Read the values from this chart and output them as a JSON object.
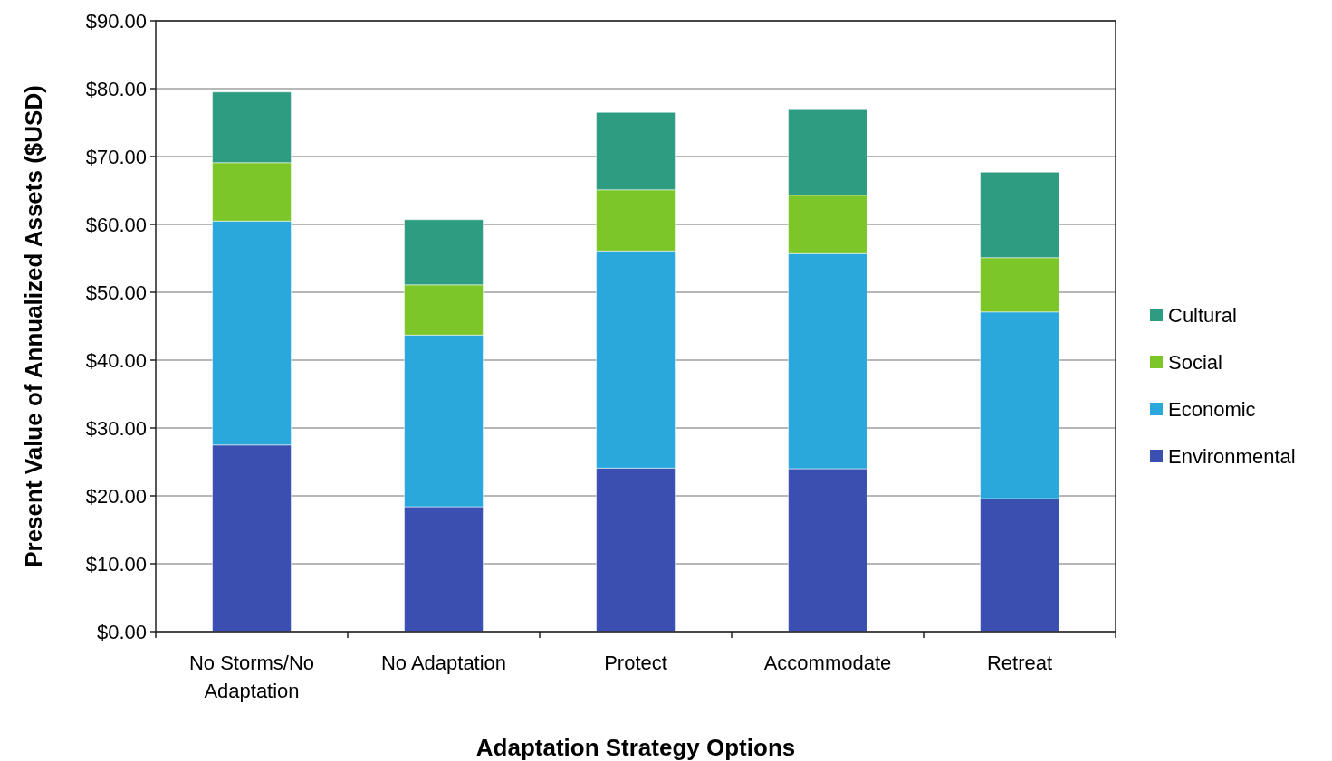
{
  "chart_data": {
    "type": "bar",
    "stacked": true,
    "xlabel": "Adaptation Strategy Options",
    "ylabel": "Present Value of Annualized Assets ($USD)",
    "categories": [
      "No Storms/No Adaptation",
      "No Adaptation",
      "Protect",
      "Accommodate",
      "Retreat"
    ],
    "series": [
      {
        "name": "Environmental",
        "color": "#3a4fb0",
        "values": [
          27.5,
          18.4,
          24.1,
          24.0,
          19.6
        ]
      },
      {
        "name": "Economic",
        "color": "#2aa8dc",
        "values": [
          33.0,
          25.3,
          32.0,
          31.7,
          27.5
        ]
      },
      {
        "name": "Social",
        "color": "#7cc629",
        "values": [
          8.6,
          7.4,
          9.0,
          8.6,
          8.0
        ]
      },
      {
        "name": "Cultural",
        "color": "#2e9c80",
        "values": [
          10.4,
          9.6,
          11.4,
          12.6,
          12.6
        ]
      }
    ],
    "ylim": [
      0,
      90
    ],
    "yticks": [
      {
        "value": 0,
        "label": "$0.00"
      },
      {
        "value": 10,
        "label": "$10.00"
      },
      {
        "value": 20,
        "label": "$20.00"
      },
      {
        "value": 30,
        "label": "$30.00"
      },
      {
        "value": 40,
        "label": "$40.00"
      },
      {
        "value": 50,
        "label": "$50.00"
      },
      {
        "value": 60,
        "label": "$60.00"
      },
      {
        "value": 70,
        "label": "$70.00"
      },
      {
        "value": 80,
        "label": "$80.00"
      },
      {
        "value": 90,
        "label": "$90.00"
      }
    ],
    "grid": "y",
    "legend": "right"
  }
}
